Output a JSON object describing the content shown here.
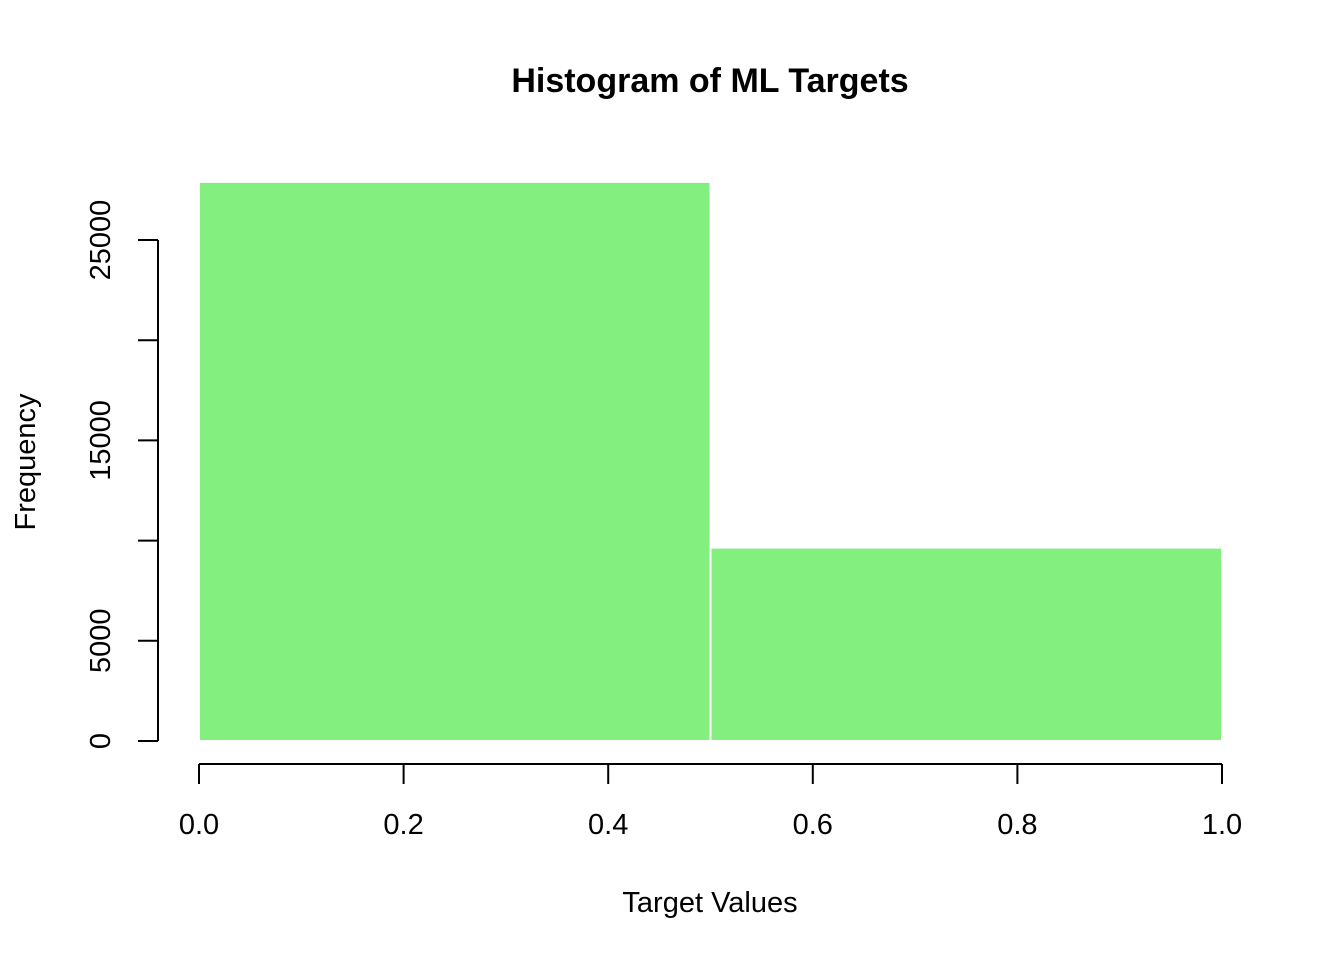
{
  "chart_data": {
    "type": "bar",
    "title": "Histogram of ML Targets",
    "xlabel": "Target Values",
    "ylabel": "Frequency",
    "bins": [
      {
        "start": 0.0,
        "end": 0.5,
        "count": 27900
      },
      {
        "start": 0.5,
        "end": 1.0,
        "count": 9650
      }
    ],
    "xlim": [
      0.0,
      1.0
    ],
    "ylim": [
      0,
      28000
    ],
    "x_ticks": [
      0.0,
      0.2,
      0.4,
      0.6,
      0.8,
      1.0
    ],
    "x_tick_labels": [
      "0.0",
      "0.2",
      "0.4",
      "0.6",
      "0.8",
      "1.0"
    ],
    "y_ticks": [
      0,
      5000,
      10000,
      15000,
      20000,
      25000
    ],
    "y_tick_labels": [
      "0",
      "5000",
      "",
      "15000",
      "",
      "25000"
    ],
    "bar_color": "#83ef7f",
    "grid": false
  }
}
